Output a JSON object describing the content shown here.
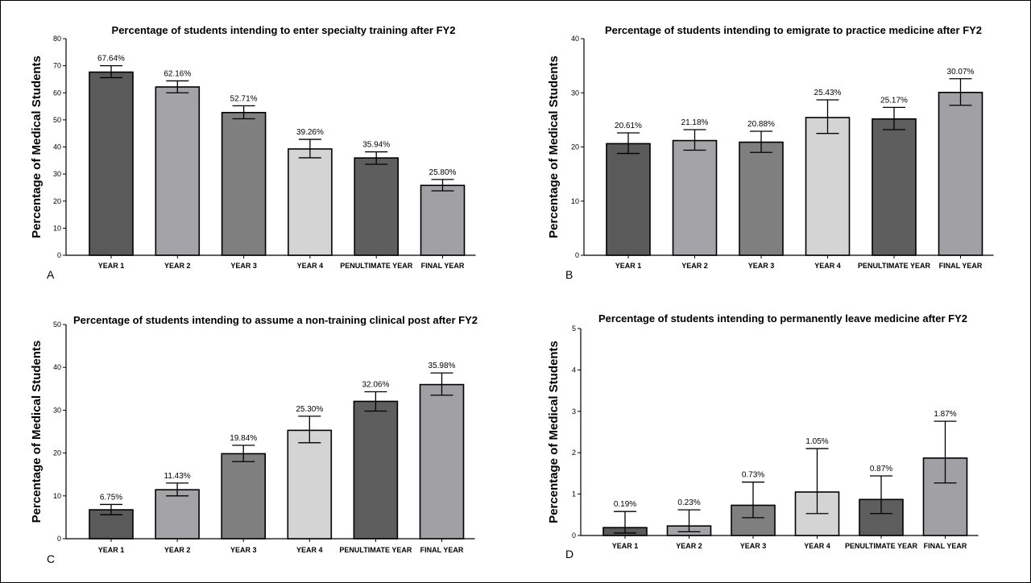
{
  "chart_data": [
    {
      "type": "bar",
      "panel_label": "A",
      "title": "Percentage of students intending to enter specialty training after FY2",
      "ylabel": "Percentage of Medical Students",
      "xlabel": "",
      "ylim": [
        0,
        80
      ],
      "yticks": [
        0,
        10,
        20,
        30,
        40,
        50,
        60,
        70,
        80
      ],
      "categories": [
        "YEAR 1",
        "YEAR 2",
        "YEAR 3",
        "YEAR 4",
        "PENULTIMATE YEAR",
        "FINAL YEAR"
      ],
      "values": [
        67.64,
        62.16,
        52.71,
        39.26,
        35.94,
        25.8
      ],
      "labels": [
        "67.64%",
        "62.16%",
        "52.71%",
        "39.26%",
        "35.94%",
        "25.80%"
      ],
      "error_low": [
        65.6,
        60.0,
        50.4,
        36.0,
        33.6,
        23.8
      ],
      "error_high": [
        70.0,
        64.4,
        55.2,
        42.8,
        38.2,
        28.0
      ]
    },
    {
      "type": "bar",
      "panel_label": "B",
      "title": "Percentage of students intending to emigrate to practice medicine after FY2",
      "ylabel": "Percentage of Medical Students",
      "xlabel": "",
      "ylim": [
        0,
        40
      ],
      "yticks": [
        0,
        10,
        20,
        30,
        40
      ],
      "categories": [
        "YEAR 1",
        "YEAR 2",
        "YEAR 3",
        "YEAR 4",
        "PENULTIMATE YEAR",
        "FINAL YEAR"
      ],
      "values": [
        20.61,
        21.18,
        20.88,
        25.43,
        25.17,
        30.07
      ],
      "labels": [
        "20.61%",
        "21.18%",
        "20.88%",
        "25.43%",
        "25.17%",
        "30.07%"
      ],
      "error_low": [
        18.8,
        19.4,
        19.0,
        22.5,
        23.2,
        27.7
      ],
      "error_high": [
        22.6,
        23.2,
        22.9,
        28.7,
        27.3,
        32.6
      ]
    },
    {
      "type": "bar",
      "panel_label": "C",
      "title": "Percentage of students intending to assume a non-training clinical post after FY2",
      "ylabel": "Percentage of Medical Students",
      "xlabel": "",
      "ylim": [
        0,
        50
      ],
      "yticks": [
        0,
        10,
        20,
        30,
        40,
        50
      ],
      "categories": [
        "YEAR 1",
        "YEAR 2",
        "YEAR 3",
        "YEAR 4",
        "PENULTIMATE YEAR",
        "FINAL YEAR"
      ],
      "values": [
        6.75,
        11.43,
        19.84,
        25.3,
        32.06,
        35.98
      ],
      "labels": [
        "6.75%",
        "11.43%",
        "19.84%",
        "25.30%",
        "32.06%",
        "35.98%"
      ],
      "error_low": [
        5.6,
        10.0,
        18.0,
        22.4,
        29.8,
        33.5
      ],
      "error_high": [
        8.0,
        13.0,
        21.8,
        28.6,
        34.3,
        38.7
      ]
    },
    {
      "type": "bar",
      "panel_label": "D",
      "title": "Percentage of students intending to permanently leave medicine after FY2",
      "ylabel": "Percentage of Medical Students",
      "xlabel": "",
      "ylim": [
        0,
        5
      ],
      "yticks": [
        0,
        1,
        2,
        3,
        4,
        5
      ],
      "categories": [
        "YEAR 1",
        "YEAR 2",
        "YEAR 3",
        "YEAR 4",
        "PENULTIMATE YEAR",
        "FINAL YEAR"
      ],
      "values": [
        0.19,
        0.23,
        0.73,
        1.05,
        0.87,
        1.87
      ],
      "labels": [
        "0.19%",
        "0.23%",
        "0.73%",
        "1.05%",
        "0.87%",
        "1.87%"
      ],
      "error_low": [
        0.06,
        0.09,
        0.43,
        0.53,
        0.53,
        1.27
      ],
      "error_high": [
        0.58,
        0.62,
        1.29,
        2.1,
        1.44,
        2.76
      ]
    }
  ],
  "colors": {
    "bar_fills": [
      "#5a5a5a",
      "#a3a3a8",
      "#7f7f7f",
      "#d4d4d4",
      "#5e5e5e",
      "#a1a0a5"
    ],
    "stroke": "#000000"
  }
}
